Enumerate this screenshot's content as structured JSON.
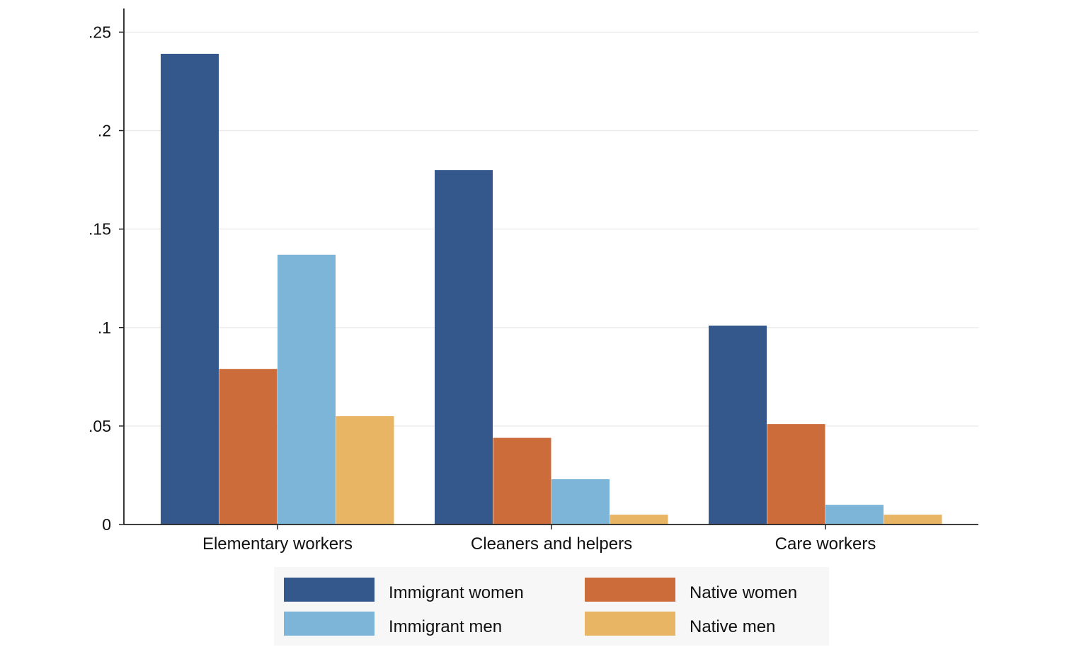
{
  "chart_data": {
    "type": "bar",
    "categories": [
      "Elementary workers",
      "Cleaners and helpers",
      "Care workers"
    ],
    "series": [
      {
        "name": "Immigrant women",
        "color": "#34588b",
        "values": [
          0.239,
          0.18,
          0.101
        ]
      },
      {
        "name": "Native women",
        "color": "#cc6c3b",
        "values": [
          0.079,
          0.044,
          0.051
        ]
      },
      {
        "name": "Immigrant men",
        "color": "#7db5d8",
        "values": [
          0.137,
          0.023,
          0.01
        ]
      },
      {
        "name": "Native men",
        "color": "#e8b565",
        "values": [
          0.055,
          0.005,
          0.005
        ]
      }
    ],
    "yticks": [
      {
        "value": 0,
        "label": "0"
      },
      {
        "value": 0.05,
        "label": ".05"
      },
      {
        "value": 0.1,
        "label": ".1"
      },
      {
        "value": 0.15,
        "label": ".15"
      },
      {
        "value": 0.2,
        "label": ".2"
      },
      {
        "value": 0.25,
        "label": ".25"
      }
    ],
    "ylim": [
      0,
      0.262
    ],
    "grid": true,
    "legend_position": "bottom",
    "title": "",
    "xlabel": "",
    "ylabel": ""
  }
}
